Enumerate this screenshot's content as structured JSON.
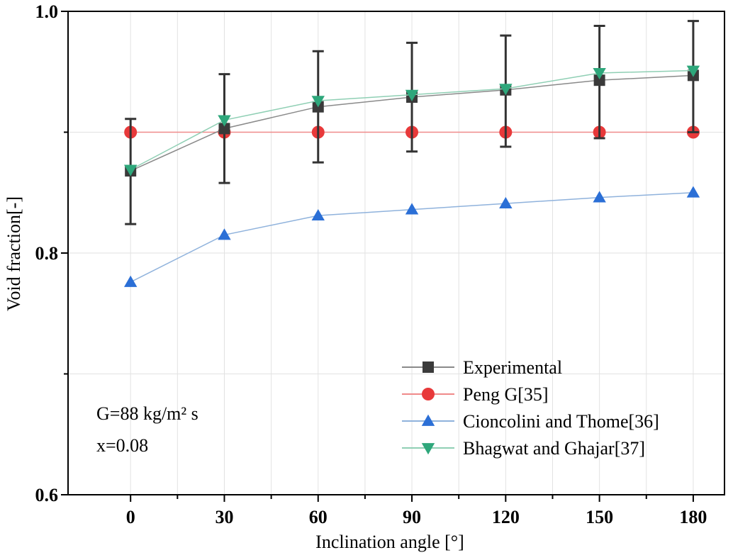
{
  "chart_data": {
    "type": "line",
    "xlabel": "Inclination angle [°]",
    "ylabel": "Void fraction[-]",
    "xlim": [
      -20,
      190
    ],
    "ylim": [
      0.6,
      1.0
    ],
    "x": [
      0,
      30,
      60,
      90,
      120,
      150,
      180
    ],
    "xticks": [
      0,
      30,
      60,
      90,
      120,
      150,
      180
    ],
    "xtick_labels": [
      "0",
      "30",
      "60",
      "90",
      "120",
      "150",
      "180"
    ],
    "yticks": [
      0.6,
      0.8,
      1.0
    ],
    "ytick_labels": [
      "0.6",
      "0.8",
      "1.0"
    ],
    "grid": true,
    "legend_position": "bottom-right",
    "series": [
      {
        "name": "Experimental",
        "marker": "square",
        "color": "#3a3a3a",
        "line_color": "#8a8a8a",
        "values": [
          0.868,
          0.903,
          0.921,
          0.929,
          0.935,
          0.943,
          0.947
        ],
        "error_low": [
          0.824,
          0.858,
          0.875,
          0.884,
          0.888,
          0.895,
          0.9
        ],
        "error_high": [
          0.911,
          0.948,
          0.967,
          0.974,
          0.98,
          0.988,
          0.992
        ]
      },
      {
        "name": "Peng G[35]",
        "marker": "circle",
        "color": "#e8393a",
        "line_color": "#f08a8a",
        "values": [
          0.9,
          0.9,
          0.9,
          0.9,
          0.9,
          0.9,
          0.9
        ]
      },
      {
        "name": "Cioncolini and Thome[36]",
        "marker": "triangle-up",
        "color": "#2b6fd6",
        "line_color": "#8fb2dc",
        "values": [
          0.776,
          0.815,
          0.831,
          0.836,
          0.841,
          0.846,
          0.85
        ]
      },
      {
        "name": "Bhagwat and Ghajar[37]",
        "marker": "triangle-down",
        "color": "#2ea77b",
        "line_color": "#8fcfb4",
        "values": [
          0.869,
          0.91,
          0.926,
          0.931,
          0.936,
          0.949,
          0.951
        ]
      }
    ],
    "annotations": [
      "G=88 kg/m² s",
      "x=0.08"
    ]
  }
}
